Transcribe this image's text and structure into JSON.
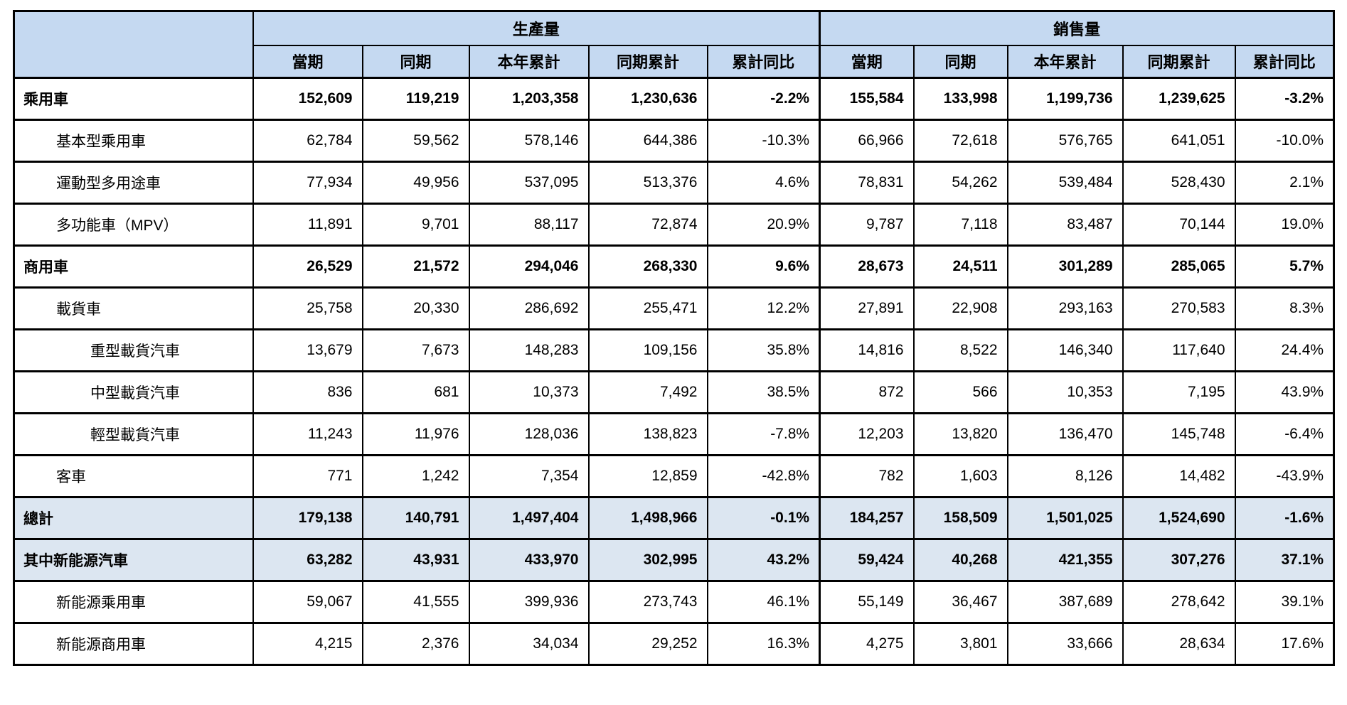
{
  "colors": {
    "header_bg": "#c5d9f1",
    "shaded_row_bg": "#dce6f1",
    "border": "#000000",
    "text": "#000000"
  },
  "chart_data": {
    "type": "table",
    "groups": [
      "生產量",
      "銷售量"
    ],
    "sub_columns": [
      "當期",
      "同期",
      "本年累計",
      "同期累計",
      "累計同比"
    ],
    "rows": [
      {
        "label": "乘用車",
        "level": 0,
        "bold": true,
        "shaded": false,
        "production": [
          "152,609",
          "119,219",
          "1,203,358",
          "1,230,636",
          "-2.2%"
        ],
        "sales": [
          "155,584",
          "133,998",
          "1,199,736",
          "1,239,625",
          "-3.2%"
        ]
      },
      {
        "label": "基本型乘用車",
        "level": 1,
        "bold": false,
        "shaded": false,
        "production": [
          "62,784",
          "59,562",
          "578,146",
          "644,386",
          "-10.3%"
        ],
        "sales": [
          "66,966",
          "72,618",
          "576,765",
          "641,051",
          "-10.0%"
        ]
      },
      {
        "label": "運動型多用途車",
        "level": 1,
        "bold": false,
        "shaded": false,
        "production": [
          "77,934",
          "49,956",
          "537,095",
          "513,376",
          "4.6%"
        ],
        "sales": [
          "78,831",
          "54,262",
          "539,484",
          "528,430",
          "2.1%"
        ]
      },
      {
        "label": "多功能車（MPV）",
        "level": 1,
        "bold": false,
        "shaded": false,
        "production": [
          "11,891",
          "9,701",
          "88,117",
          "72,874",
          "20.9%"
        ],
        "sales": [
          "9,787",
          "7,118",
          "83,487",
          "70,144",
          "19.0%"
        ]
      },
      {
        "label": "商用車",
        "level": 0,
        "bold": true,
        "shaded": false,
        "production": [
          "26,529",
          "21,572",
          "294,046",
          "268,330",
          "9.6%"
        ],
        "sales": [
          "28,673",
          "24,511",
          "301,289",
          "285,065",
          "5.7%"
        ]
      },
      {
        "label": "載貨車",
        "level": 1,
        "bold": false,
        "shaded": false,
        "production": [
          "25,758",
          "20,330",
          "286,692",
          "255,471",
          "12.2%"
        ],
        "sales": [
          "27,891",
          "22,908",
          "293,163",
          "270,583",
          "8.3%"
        ]
      },
      {
        "label": "重型載貨汽車",
        "level": 2,
        "bold": false,
        "shaded": false,
        "production": [
          "13,679",
          "7,673",
          "148,283",
          "109,156",
          "35.8%"
        ],
        "sales": [
          "14,816",
          "8,522",
          "146,340",
          "117,640",
          "24.4%"
        ]
      },
      {
        "label": "中型載貨汽車",
        "level": 2,
        "bold": false,
        "shaded": false,
        "production": [
          "836",
          "681",
          "10,373",
          "7,492",
          "38.5%"
        ],
        "sales": [
          "872",
          "566",
          "10,353",
          "7,195",
          "43.9%"
        ]
      },
      {
        "label": "輕型載貨汽車",
        "level": 2,
        "bold": false,
        "shaded": false,
        "production": [
          "11,243",
          "11,976",
          "128,036",
          "138,823",
          "-7.8%"
        ],
        "sales": [
          "12,203",
          "13,820",
          "136,470",
          "145,748",
          "-6.4%"
        ]
      },
      {
        "label": "客車",
        "level": 1,
        "bold": false,
        "shaded": false,
        "production": [
          "771",
          "1,242",
          "7,354",
          "12,859",
          "-42.8%"
        ],
        "sales": [
          "782",
          "1,603",
          "8,126",
          "14,482",
          "-43.9%"
        ]
      },
      {
        "label": "總計",
        "level": 0,
        "bold": true,
        "shaded": true,
        "production": [
          "179,138",
          "140,791",
          "1,497,404",
          "1,498,966",
          "-0.1%"
        ],
        "sales": [
          "184,257",
          "158,509",
          "1,501,025",
          "1,524,690",
          "-1.6%"
        ]
      },
      {
        "label": "其中新能源汽車",
        "level": 0,
        "bold": true,
        "shaded": true,
        "production": [
          "63,282",
          "43,931",
          "433,970",
          "302,995",
          "43.2%"
        ],
        "sales": [
          "59,424",
          "40,268",
          "421,355",
          "307,276",
          "37.1%"
        ]
      },
      {
        "label": "新能源乘用車",
        "level": 1,
        "bold": false,
        "shaded": false,
        "production": [
          "59,067",
          "41,555",
          "399,936",
          "273,743",
          "46.1%"
        ],
        "sales": [
          "55,149",
          "36,467",
          "387,689",
          "278,642",
          "39.1%"
        ]
      },
      {
        "label": "新能源商用車",
        "level": 1,
        "bold": false,
        "shaded": false,
        "production": [
          "4,215",
          "2,376",
          "34,034",
          "29,252",
          "16.3%"
        ],
        "sales": [
          "4,275",
          "3,801",
          "33,666",
          "28,634",
          "17.6%"
        ]
      }
    ]
  }
}
